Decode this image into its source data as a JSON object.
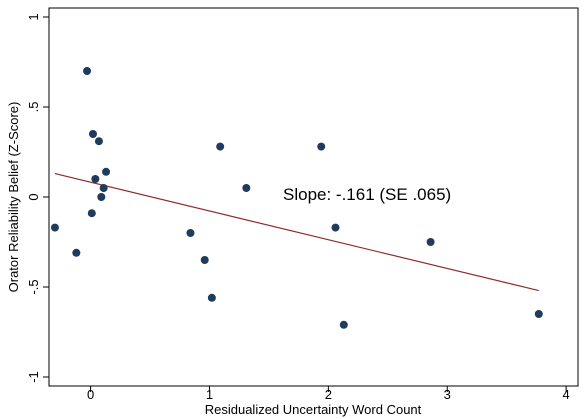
{
  "chart_data": {
    "type": "scatter",
    "xlabel": "Residualized Uncertainty Word Count",
    "ylabel": "Orator Reliability Belief (Z-Score)",
    "xlim": [
      -0.35,
      4.1
    ],
    "ylim": [
      -1.05,
      1.05
    ],
    "x_ticks": [
      0,
      1,
      2,
      3,
      4
    ],
    "x_tick_labels": [
      "0",
      "1",
      "2",
      "3",
      "4"
    ],
    "y_ticks": [
      -1,
      -0.5,
      0,
      0.5,
      1
    ],
    "y_tick_labels": [
      "-1",
      "-.5",
      "0",
      ".5",
      "1"
    ],
    "grid": false,
    "points": [
      {
        "x": -0.3,
        "y": -0.17
      },
      {
        "x": -0.12,
        "y": -0.31
      },
      {
        "x": -0.03,
        "y": 0.7
      },
      {
        "x": 0.01,
        "y": -0.09
      },
      {
        "x": 0.02,
        "y": 0.35
      },
      {
        "x": 0.04,
        "y": 0.1
      },
      {
        "x": 0.07,
        "y": 0.31
      },
      {
        "x": 0.09,
        "y": 0.0
      },
      {
        "x": 0.11,
        "y": 0.05
      },
      {
        "x": 0.13,
        "y": 0.14
      },
      {
        "x": 0.84,
        "y": -0.2
      },
      {
        "x": 0.96,
        "y": -0.35
      },
      {
        "x": 1.02,
        "y": -0.56
      },
      {
        "x": 1.09,
        "y": 0.28
      },
      {
        "x": 1.31,
        "y": 0.05
      },
      {
        "x": 1.94,
        "y": 0.28
      },
      {
        "x": 2.06,
        "y": -0.17
      },
      {
        "x": 2.13,
        "y": -0.71
      },
      {
        "x": 2.86,
        "y": -0.25
      },
      {
        "x": 3.77,
        "y": -0.65
      }
    ],
    "fit_line": {
      "x": [
        -0.3,
        3.77
      ],
      "y": [
        0.13,
        -0.52
      ]
    },
    "annotation": "Slope: -.161 (SE .065)",
    "colors": {
      "points": "#1f3c5c",
      "fit_line": "#8b2c2c",
      "axis": "#000000"
    }
  }
}
